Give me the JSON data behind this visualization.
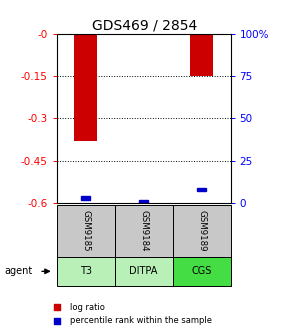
{
  "title": "GDS469 / 2854",
  "samples": [
    "GSM9185",
    "GSM9184",
    "GSM9189"
  ],
  "agents": [
    "T3",
    "DITPA",
    "CGS"
  ],
  "log_ratios": [
    -0.38,
    0.0,
    -0.15
  ],
  "percentile_ranks": [
    3,
    1,
    8
  ],
  "ylim_left": [
    -0.6,
    0.0
  ],
  "left_ticks": [
    0,
    -0.15,
    -0.3,
    -0.45,
    -0.6
  ],
  "right_ticks": [
    100,
    75,
    50,
    25,
    0
  ],
  "bar_color_red": "#cc0000",
  "bar_color_blue": "#0000cc",
  "sample_bg": "#c8c8c8",
  "agent_colors": [
    "#b8f0b8",
    "#b8f0b8",
    "#44dd44"
  ],
  "legend_red": "log ratio",
  "legend_blue": "percentile rank within the sample",
  "title_fontsize": 10,
  "tick_fontsize": 7.5,
  "bar_width": 0.4
}
